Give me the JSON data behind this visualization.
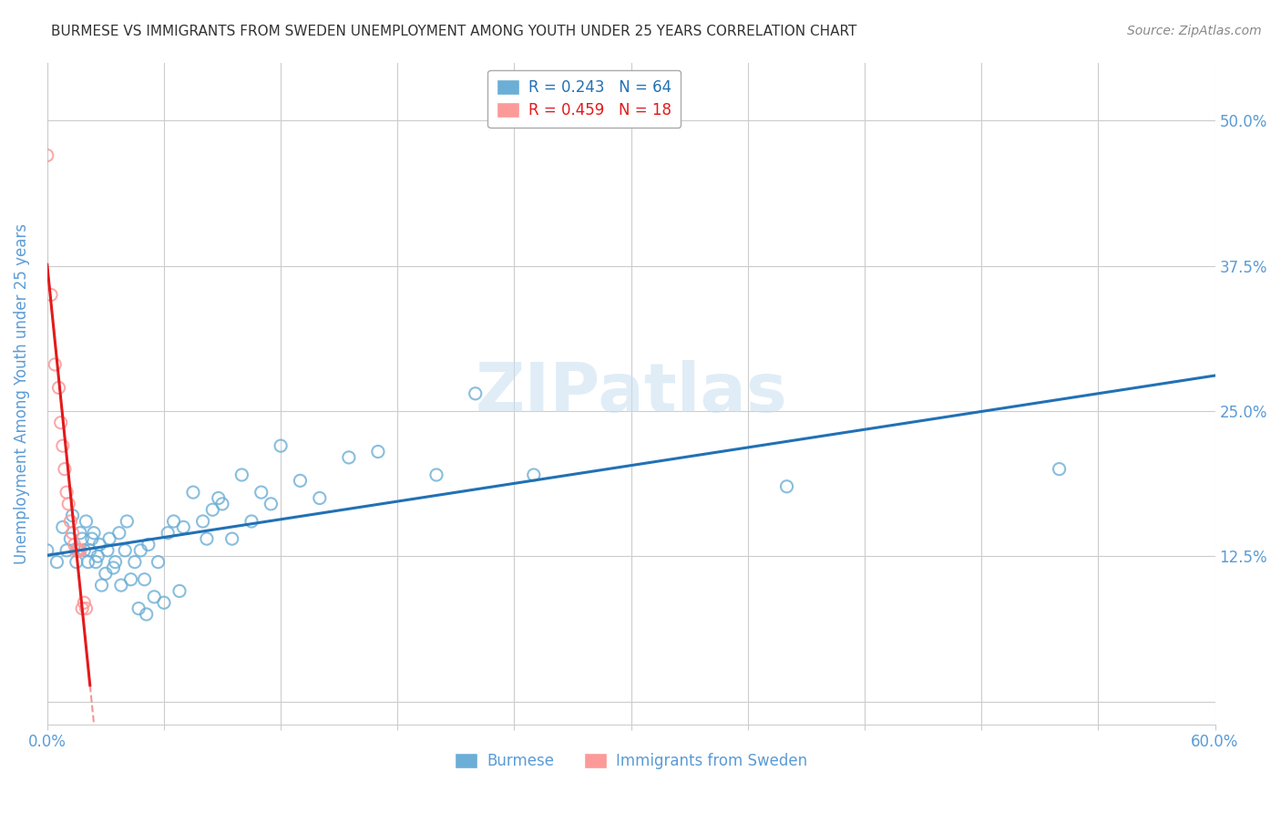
{
  "title": "BURMESE VS IMMIGRANTS FROM SWEDEN UNEMPLOYMENT AMONG YOUTH UNDER 25 YEARS CORRELATION CHART",
  "source": "Source: ZipAtlas.com",
  "ylabel": "Unemployment Among Youth under 25 years",
  "xlim": [
    0.0,
    0.6
  ],
  "ylim": [
    -0.02,
    0.55
  ],
  "xticks": [
    0.0,
    0.06,
    0.12,
    0.18,
    0.24,
    0.3,
    0.36,
    0.42,
    0.48,
    0.54,
    0.6
  ],
  "ytick_positions": [
    0.0,
    0.125,
    0.25,
    0.375,
    0.5
  ],
  "ytick_labels": [
    "",
    "12.5%",
    "25.0%",
    "37.5%",
    "50.0%"
  ],
  "burmese_R": 0.243,
  "burmese_N": 64,
  "sweden_R": 0.459,
  "sweden_N": 18,
  "burmese_color": "#6baed6",
  "sweden_color": "#fb9a99",
  "burmese_line_color": "#2171b5",
  "sweden_line_color": "#e31a1c",
  "background_color": "#ffffff",
  "burmese_x": [
    0.0,
    0.005,
    0.008,
    0.01,
    0.012,
    0.013,
    0.015,
    0.016,
    0.017,
    0.018,
    0.019,
    0.02,
    0.021,
    0.022,
    0.023,
    0.024,
    0.025,
    0.026,
    0.027,
    0.028,
    0.03,
    0.031,
    0.032,
    0.034,
    0.035,
    0.037,
    0.038,
    0.04,
    0.041,
    0.043,
    0.045,
    0.047,
    0.048,
    0.05,
    0.051,
    0.052,
    0.055,
    0.057,
    0.06,
    0.062,
    0.065,
    0.068,
    0.07,
    0.075,
    0.08,
    0.082,
    0.085,
    0.088,
    0.09,
    0.095,
    0.1,
    0.105,
    0.11,
    0.115,
    0.12,
    0.13,
    0.14,
    0.155,
    0.17,
    0.2,
    0.22,
    0.25,
    0.38,
    0.52
  ],
  "burmese_y": [
    0.13,
    0.12,
    0.15,
    0.13,
    0.14,
    0.16,
    0.12,
    0.13,
    0.145,
    0.14,
    0.13,
    0.155,
    0.12,
    0.13,
    0.14,
    0.145,
    0.12,
    0.125,
    0.135,
    0.1,
    0.11,
    0.13,
    0.14,
    0.115,
    0.12,
    0.145,
    0.1,
    0.13,
    0.155,
    0.105,
    0.12,
    0.08,
    0.13,
    0.105,
    0.075,
    0.135,
    0.09,
    0.12,
    0.085,
    0.145,
    0.155,
    0.095,
    0.15,
    0.18,
    0.155,
    0.14,
    0.165,
    0.175,
    0.17,
    0.14,
    0.195,
    0.155,
    0.18,
    0.17,
    0.22,
    0.19,
    0.175,
    0.21,
    0.215,
    0.195,
    0.265,
    0.195,
    0.185,
    0.2
  ],
  "sweden_x": [
    0.0,
    0.002,
    0.004,
    0.006,
    0.007,
    0.008,
    0.009,
    0.01,
    0.011,
    0.012,
    0.013,
    0.014,
    0.015,
    0.016,
    0.017,
    0.018,
    0.019,
    0.02
  ],
  "sweden_y": [
    0.47,
    0.35,
    0.29,
    0.27,
    0.24,
    0.22,
    0.2,
    0.18,
    0.17,
    0.155,
    0.145,
    0.135,
    0.13,
    0.13,
    0.13,
    0.08,
    0.085,
    0.08
  ],
  "grid_color": "#cccccc",
  "title_color": "#333333",
  "axis_color": "#5b9bd5",
  "tick_label_color": "#5b9bd5"
}
